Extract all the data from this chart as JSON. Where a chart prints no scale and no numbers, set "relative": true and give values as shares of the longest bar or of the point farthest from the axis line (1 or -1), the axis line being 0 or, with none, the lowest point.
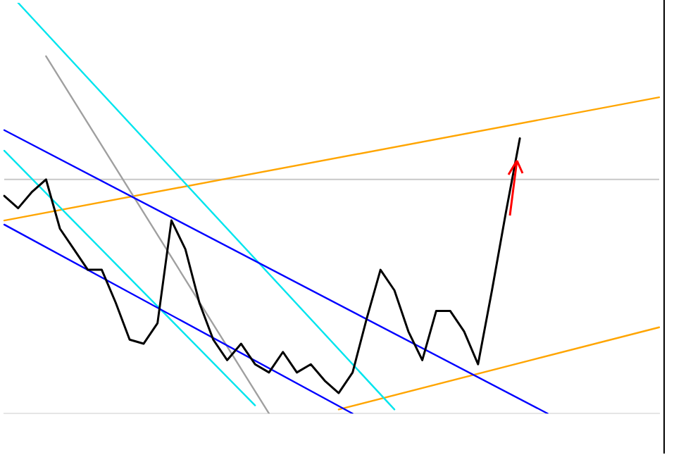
{
  "chart_data": {
    "type": "line",
    "relative": true,
    "legend": false,
    "marker": "none",
    "categories": [
      null,
      null,
      null,
      null,
      null,
      null,
      null,
      null,
      null,
      null,
      null,
      null,
      null,
      null,
      null,
      null,
      null,
      null,
      null,
      null,
      null,
      null,
      null,
      null,
      null,
      null,
      null,
      null,
      null,
      null,
      null,
      null,
      null,
      null,
      null,
      null,
      null,
      null,
      null,
      null,
      null,
      null,
      null,
      null,
      null,
      null,
      null,
      null
    ],
    "series": [
      {
        "color": "#000000",
        "values": [
          0.53,
          0.5,
          0.54,
          0.57,
          0.45,
          0.4,
          0.35,
          0.35,
          0.27,
          0.18,
          0.17,
          0.22,
          0.47,
          0.4,
          0.27,
          0.18,
          0.13,
          0.17,
          0.12,
          0.1,
          0.15,
          0.1,
          0.12,
          0.08,
          0.05,
          0.1,
          0.23,
          0.35,
          0.3,
          0.2,
          0.13,
          0.25,
          0.25,
          0.2,
          0.12,
          0.3,
          0.49,
          0.67,
          null,
          null,
          null,
          null,
          null,
          null,
          null,
          null,
          null,
          null
        ]
      },
      {
        "color": "#0000ff",
        "values": [
          0.69,
          null,
          null,
          null,
          null,
          null,
          null,
          null,
          null,
          null,
          null,
          null,
          null,
          null,
          null,
          null,
          null,
          null,
          null,
          null,
          null,
          null,
          null,
          null,
          null,
          null,
          null,
          null,
          null,
          null,
          null,
          null,
          null,
          null,
          null,
          null,
          null,
          null,
          null,
          0,
          null,
          null,
          null,
          null,
          null,
          null,
          null,
          null
        ]
      },
      {
        "color": "#0000ff",
        "values": [
          0.46,
          null,
          null,
          null,
          null,
          null,
          null,
          null,
          null,
          null,
          null,
          null,
          null,
          null,
          null,
          null,
          null,
          null,
          null,
          null,
          null,
          null,
          null,
          null,
          null,
          0,
          null,
          null,
          null,
          null,
          null,
          null,
          null,
          null,
          null,
          null,
          null,
          null,
          null,
          null,
          null,
          null,
          null,
          null,
          null,
          null,
          null,
          null
        ]
      },
      {
        "color": "#00e5ee",
        "values": [
          null,
          1,
          null,
          null,
          null,
          null,
          null,
          null,
          null,
          null,
          null,
          null,
          null,
          null,
          null,
          null,
          null,
          null,
          null,
          null,
          null,
          null,
          null,
          null,
          null,
          null,
          null,
          null,
          0.01,
          null,
          null,
          null,
          null,
          null,
          null,
          null,
          null,
          null,
          null,
          null,
          null,
          null,
          null,
          null,
          null,
          null,
          null,
          null
        ]
      },
      {
        "color": "#00e5ee",
        "values": [
          0.64,
          null,
          null,
          null,
          null,
          null,
          null,
          null,
          null,
          null,
          null,
          null,
          null,
          null,
          null,
          null,
          null,
          null,
          0.02,
          null,
          null,
          null,
          null,
          null,
          null,
          null,
          null,
          null,
          null,
          null,
          null,
          null,
          null,
          null,
          null,
          null,
          null,
          null,
          null,
          null,
          null,
          null,
          null,
          null,
          null,
          null,
          null,
          null
        ]
      },
      {
        "color": "#a0a0a0",
        "values": [
          null,
          null,
          null,
          0.87,
          null,
          null,
          null,
          null,
          null,
          null,
          null,
          null,
          null,
          null,
          null,
          null,
          null,
          null,
          null,
          0,
          null,
          null,
          null,
          null,
          null,
          null,
          null,
          null,
          null,
          null,
          null,
          null,
          null,
          null,
          null,
          null,
          null,
          null,
          null,
          null,
          null,
          null,
          null,
          null,
          null,
          null,
          null,
          null
        ]
      },
      {
        "color": "#ffa500",
        "values": [
          0.47,
          null,
          null,
          null,
          null,
          null,
          null,
          null,
          null,
          null,
          null,
          null,
          null,
          null,
          null,
          null,
          null,
          null,
          null,
          null,
          null,
          null,
          null,
          null,
          null,
          null,
          null,
          null,
          null,
          null,
          null,
          null,
          null,
          null,
          null,
          null,
          null,
          null,
          null,
          null,
          null,
          null,
          null,
          null,
          null,
          null,
          null,
          0.77
        ]
      },
      {
        "color": "#ffa500",
        "values": [
          null,
          null,
          null,
          null,
          null,
          null,
          null,
          null,
          null,
          null,
          null,
          null,
          null,
          null,
          null,
          null,
          null,
          null,
          null,
          null,
          null,
          null,
          null,
          null,
          0.01,
          null,
          null,
          null,
          null,
          null,
          null,
          null,
          null,
          null,
          null,
          null,
          null,
          null,
          null,
          null,
          null,
          null,
          null,
          null,
          null,
          null,
          null,
          0.21
        ]
      }
    ],
    "ref_lines": [
      {
        "axis": "y",
        "value": 0.57,
        "color": "#c8c8c8"
      }
    ]
  }
}
